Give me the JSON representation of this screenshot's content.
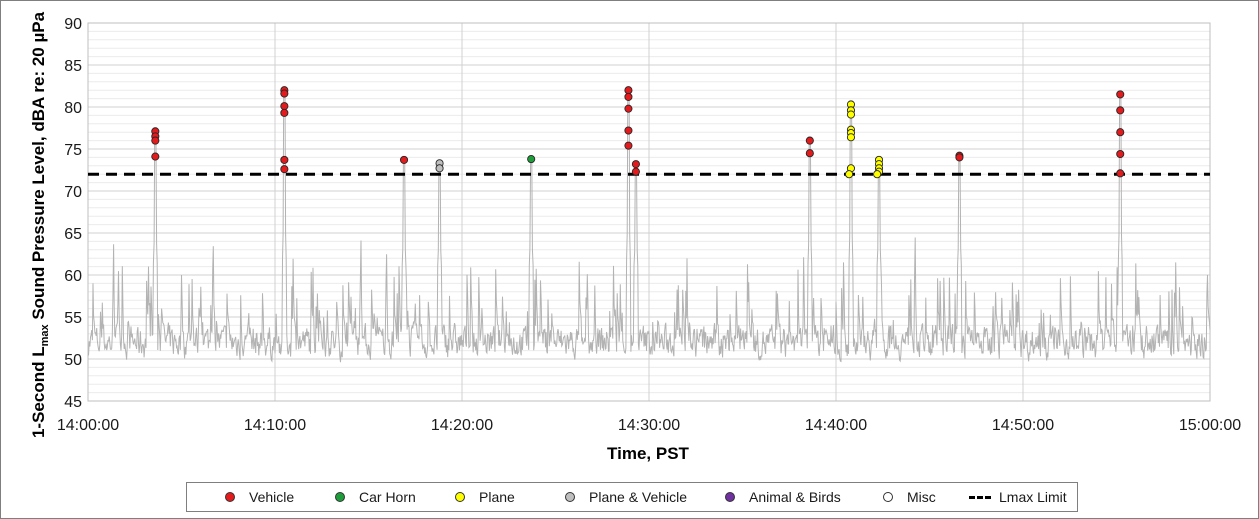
{
  "chart_data": {
    "type": "scatter",
    "title": "",
    "xlabel": "Time, PST",
    "ylabel_parts": [
      "1-Second L",
      "max",
      " Sound Pressure Level, dBA re: 20 µPa"
    ],
    "xlim": [
      0,
      60
    ],
    "ylim": [
      45,
      90
    ],
    "x_unit": "minutes after 14:00:00",
    "x_ticks": [
      {
        "value": 0,
        "label": "14:00:00"
      },
      {
        "value": 10,
        "label": "14:10:00"
      },
      {
        "value": 20,
        "label": "14:20:00"
      },
      {
        "value": 30,
        "label": "14:30:00"
      },
      {
        "value": 40,
        "label": "14:40:00"
      },
      {
        "value": 50,
        "label": "14:50:00"
      },
      {
        "value": 60,
        "label": "15:00:00"
      }
    ],
    "y_ticks": [
      45,
      50,
      55,
      60,
      65,
      70,
      75,
      80,
      85,
      90
    ],
    "grid": {
      "major": true,
      "minor_y": true
    },
    "background_series": {
      "name": "1-Second Lmax",
      "color": "#b3b3b3",
      "baseline": 52,
      "spikes": [
        [
          3.6,
          77
        ],
        [
          10.5,
          82
        ],
        [
          16.9,
          73.8
        ],
        [
          18.8,
          73
        ],
        [
          23.7,
          73.8
        ],
        [
          28.9,
          82
        ],
        [
          29.3,
          73
        ],
        [
          38.6,
          76
        ],
        [
          40.8,
          80.5
        ],
        [
          42.3,
          73.7
        ],
        [
          46.6,
          74.2
        ],
        [
          55.2,
          81.5
        ]
      ]
    },
    "limit_line": {
      "name": "Lmax Limit",
      "value": 72,
      "color": "#000000"
    },
    "series": [
      {
        "name": "Vehicle",
        "color": "#e41a1c",
        "points": [
          [
            3.6,
            77.1
          ],
          [
            3.6,
            76.5
          ],
          [
            3.6,
            76.0
          ],
          [
            3.6,
            74.1
          ],
          [
            10.5,
            82.0
          ],
          [
            10.5,
            81.6
          ],
          [
            10.5,
            80.1
          ],
          [
            10.5,
            79.3
          ],
          [
            10.5,
            73.7
          ],
          [
            10.5,
            72.6
          ],
          [
            16.9,
            73.7
          ],
          [
            28.9,
            82.0
          ],
          [
            28.9,
            81.2
          ],
          [
            28.9,
            79.8
          ],
          [
            28.9,
            77.2
          ],
          [
            28.9,
            75.4
          ],
          [
            29.3,
            73.2
          ],
          [
            29.3,
            72.3
          ],
          [
            38.6,
            76.0
          ],
          [
            38.6,
            74.5
          ],
          [
            46.6,
            74.2
          ],
          [
            46.6,
            74.0
          ],
          [
            55.2,
            81.5
          ],
          [
            55.2,
            79.6
          ],
          [
            55.2,
            77.0
          ],
          [
            55.2,
            74.4
          ],
          [
            55.2,
            72.1
          ]
        ]
      },
      {
        "name": "Car Horn",
        "color": "#1e9e3a",
        "points": [
          [
            23.7,
            73.8
          ]
        ]
      },
      {
        "name": "Plane",
        "color": "#ffff00",
        "points": [
          [
            40.8,
            80.3
          ],
          [
            40.8,
            79.6
          ],
          [
            40.8,
            79.1
          ],
          [
            40.8,
            77.3
          ],
          [
            40.8,
            76.9
          ],
          [
            40.8,
            76.4
          ],
          [
            40.8,
            72.7
          ],
          [
            40.7,
            72.0
          ],
          [
            42.3,
            73.7
          ],
          [
            42.3,
            73.2
          ],
          [
            42.3,
            72.7
          ],
          [
            42.3,
            72.3
          ],
          [
            42.2,
            72.0
          ]
        ]
      },
      {
        "name": "Plane & Vehicle",
        "color": "#bfbfbf",
        "points": [
          [
            18.8,
            73.3
          ],
          [
            18.8,
            72.7
          ]
        ]
      },
      {
        "name": "Animal & Birds",
        "color": "#7030a0",
        "points": []
      },
      {
        "name": "Misc",
        "color": "#ffffff",
        "points": []
      }
    ],
    "legend": {
      "position": "bottom",
      "items": [
        {
          "label": "Vehicle",
          "color": "#e41a1c",
          "kind": "marker"
        },
        {
          "label": "Car Horn",
          "color": "#1e9e3a",
          "kind": "marker"
        },
        {
          "label": "Plane",
          "color": "#ffff00",
          "kind": "marker"
        },
        {
          "label": "Plane & Vehicle",
          "color": "#bfbfbf",
          "kind": "marker"
        },
        {
          "label": "Animal & Birds",
          "color": "#7030a0",
          "kind": "marker"
        },
        {
          "label": "Misc",
          "color": "#ffffff",
          "kind": "marker"
        },
        {
          "label": "Lmax Limit",
          "color": "#000000",
          "kind": "dash"
        }
      ]
    }
  }
}
